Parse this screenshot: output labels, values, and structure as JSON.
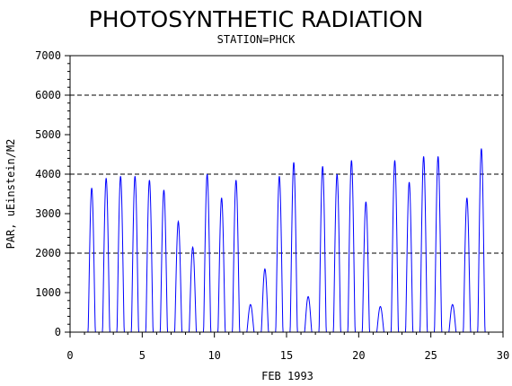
{
  "chart_data": {
    "type": "line",
    "title": "PHOTOSYNTHETIC RADIATION",
    "subtitle": "STATION=PHCK",
    "xlabel": "FEB 1993",
    "ylabel": "PAR, uEinstein/M2",
    "xlim": [
      0,
      30
    ],
    "ylim": [
      0,
      7000
    ],
    "xticks": [
      0,
      5,
      10,
      15,
      20,
      25,
      30
    ],
    "yticks": [
      0,
      1000,
      2000,
      3000,
      4000,
      5000,
      6000,
      7000
    ],
    "reference_lines": [
      2000,
      4000,
      6000
    ],
    "series_color": "#0000ff",
    "daily_peaks": [
      {
        "day": 1.5,
        "value": 3650
      },
      {
        "day": 2.5,
        "value": 3900
      },
      {
        "day": 3.5,
        "value": 3950
      },
      {
        "day": 4.5,
        "value": 3950
      },
      {
        "day": 5.5,
        "value": 3850
      },
      {
        "day": 6.5,
        "value": 3600
      },
      {
        "day": 7.5,
        "value": 2800
      },
      {
        "day": 8.5,
        "value": 2150
      },
      {
        "day": 9.5,
        "value": 4000
      },
      {
        "day": 10.5,
        "value": 3400
      },
      {
        "day": 11.5,
        "value": 3850
      },
      {
        "day": 12.5,
        "value": 700
      },
      {
        "day": 13.5,
        "value": 1600
      },
      {
        "day": 14.5,
        "value": 3950
      },
      {
        "day": 15.5,
        "value": 4300
      },
      {
        "day": 16.5,
        "value": 900
      },
      {
        "day": 17.5,
        "value": 4200
      },
      {
        "day": 18.5,
        "value": 4000
      },
      {
        "day": 19.5,
        "value": 4350
      },
      {
        "day": 20.5,
        "value": 3300
      },
      {
        "day": 21.5,
        "value": 650
      },
      {
        "day": 22.5,
        "value": 4350
      },
      {
        "day": 23.5,
        "value": 3800
      },
      {
        "day": 24.5,
        "value": 4450
      },
      {
        "day": 25.5,
        "value": 4450
      },
      {
        "day": 26.5,
        "value": 700
      },
      {
        "day": 27.5,
        "value": 3400
      },
      {
        "day": 28.5,
        "value": 4650
      }
    ]
  }
}
